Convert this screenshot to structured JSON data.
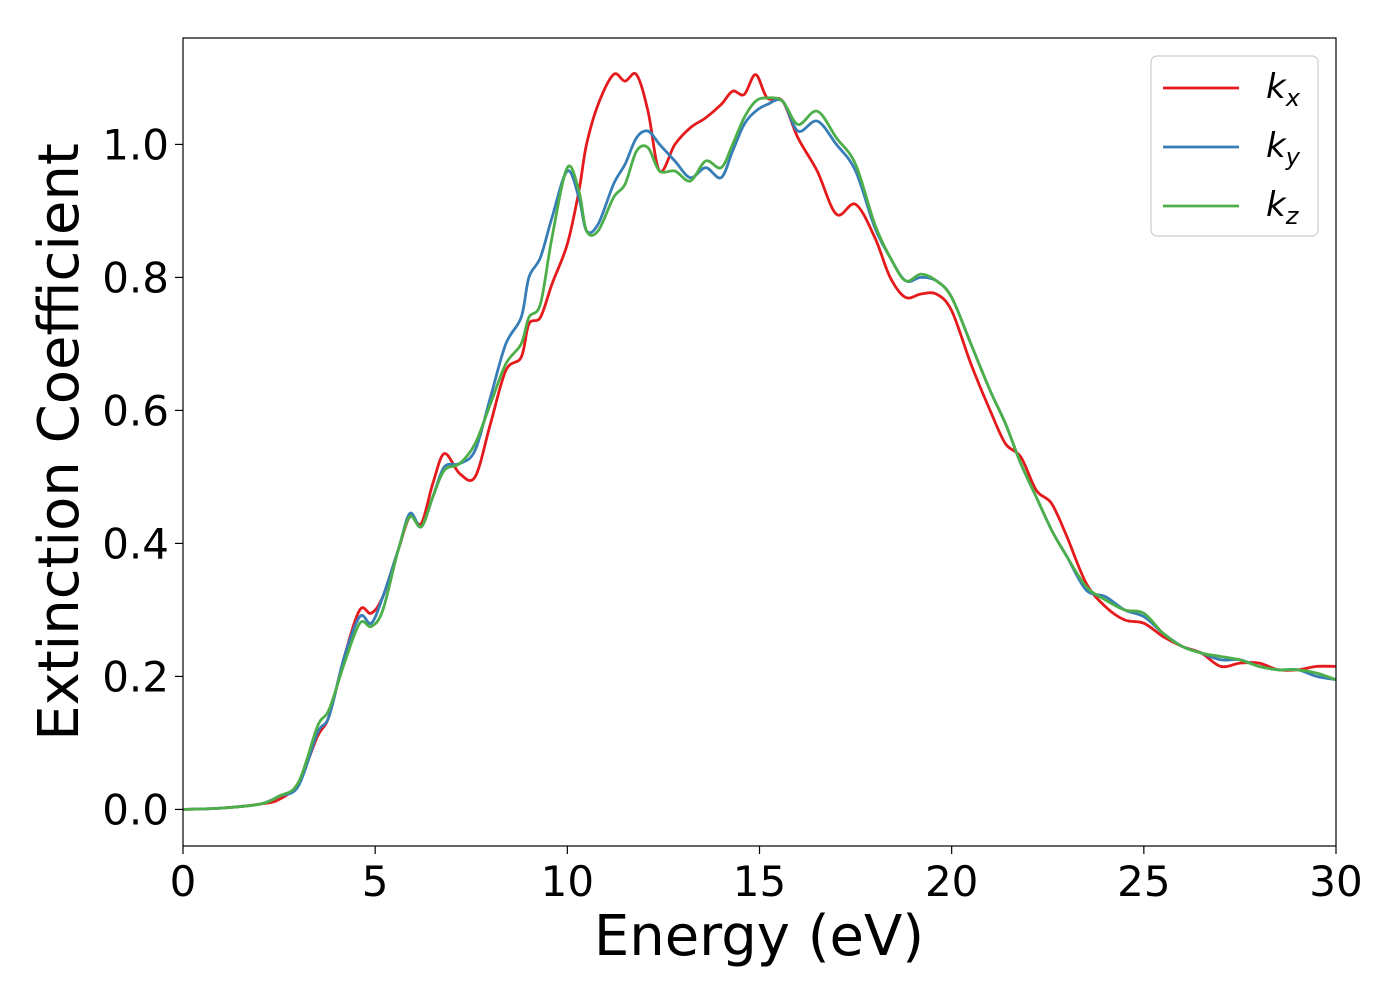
{
  "chart_data": {
    "type": "line",
    "xlabel": "Energy (eV)",
    "ylabel": "Extinction Coefficient",
    "xlim": [
      0,
      30
    ],
    "ylim": [
      -0.055,
      1.16
    ],
    "x_ticks": [
      0,
      5,
      10,
      15,
      20,
      25,
      30
    ],
    "x_tick_labels": [
      "0",
      "5",
      "10",
      "15",
      "20",
      "25",
      "30"
    ],
    "y_ticks": [
      0.0,
      0.2,
      0.4,
      0.6,
      0.8,
      1.0
    ],
    "y_tick_labels": [
      "0.0",
      "0.2",
      "0.4",
      "0.6",
      "0.8",
      "1.0"
    ],
    "grid": false,
    "legend_position": "top-right",
    "series": [
      {
        "name": "k_x",
        "label_main": "k",
        "label_sub": "x",
        "color": "#e41a1c",
        "points": [
          [
            0,
            0
          ],
          [
            1,
            0.002
          ],
          [
            2,
            0.008
          ],
          [
            2.5,
            0.015
          ],
          [
            3,
            0.04
          ],
          [
            3.5,
            0.11
          ],
          [
            3.8,
            0.14
          ],
          [
            4.2,
            0.23
          ],
          [
            4.6,
            0.3
          ],
          [
            4.9,
            0.295
          ],
          [
            5.2,
            0.32
          ],
          [
            5.6,
            0.39
          ],
          [
            5.9,
            0.44
          ],
          [
            6.2,
            0.43
          ],
          [
            6.5,
            0.49
          ],
          [
            6.8,
            0.535
          ],
          [
            7.2,
            0.505
          ],
          [
            7.6,
            0.5
          ],
          [
            8.0,
            0.58
          ],
          [
            8.4,
            0.66
          ],
          [
            8.8,
            0.68
          ],
          [
            9.0,
            0.73
          ],
          [
            9.3,
            0.74
          ],
          [
            9.6,
            0.79
          ],
          [
            10.0,
            0.85
          ],
          [
            10.3,
            0.93
          ],
          [
            10.5,
            1.0
          ],
          [
            10.8,
            1.06
          ],
          [
            11.2,
            1.105
          ],
          [
            11.5,
            1.095
          ],
          [
            11.8,
            1.105
          ],
          [
            12.1,
            1.05
          ],
          [
            12.4,
            0.96
          ],
          [
            12.8,
            1.0
          ],
          [
            13.2,
            1.025
          ],
          [
            13.6,
            1.04
          ],
          [
            14.0,
            1.06
          ],
          [
            14.3,
            1.08
          ],
          [
            14.6,
            1.075
          ],
          [
            14.9,
            1.105
          ],
          [
            15.2,
            1.07
          ],
          [
            15.6,
            1.065
          ],
          [
            16.0,
            1.01
          ],
          [
            16.5,
            0.96
          ],
          [
            17.0,
            0.895
          ],
          [
            17.5,
            0.91
          ],
          [
            18.0,
            0.86
          ],
          [
            18.4,
            0.8
          ],
          [
            18.8,
            0.77
          ],
          [
            19.2,
            0.775
          ],
          [
            19.6,
            0.775
          ],
          [
            20.0,
            0.75
          ],
          [
            20.5,
            0.67
          ],
          [
            21.0,
            0.6
          ],
          [
            21.4,
            0.55
          ],
          [
            21.8,
            0.53
          ],
          [
            22.2,
            0.48
          ],
          [
            22.6,
            0.46
          ],
          [
            23.0,
            0.41
          ],
          [
            23.5,
            0.34
          ],
          [
            24.0,
            0.305
          ],
          [
            24.5,
            0.285
          ],
          [
            25.0,
            0.28
          ],
          [
            25.5,
            0.26
          ],
          [
            26.0,
            0.245
          ],
          [
            26.5,
            0.235
          ],
          [
            27.0,
            0.215
          ],
          [
            27.5,
            0.22
          ],
          [
            28.0,
            0.22
          ],
          [
            28.5,
            0.21
          ],
          [
            29.0,
            0.21
          ],
          [
            29.5,
            0.215
          ],
          [
            30.0,
            0.215
          ]
        ]
      },
      {
        "name": "k_y",
        "label_main": "k",
        "label_sub": "y",
        "color": "#377eb8",
        "points": [
          [
            0,
            0
          ],
          [
            1,
            0.002
          ],
          [
            2,
            0.008
          ],
          [
            2.5,
            0.02
          ],
          [
            3,
            0.035
          ],
          [
            3.5,
            0.115
          ],
          [
            3.8,
            0.14
          ],
          [
            4.2,
            0.23
          ],
          [
            4.6,
            0.29
          ],
          [
            4.9,
            0.28
          ],
          [
            5.2,
            0.32
          ],
          [
            5.6,
            0.39
          ],
          [
            5.9,
            0.445
          ],
          [
            6.2,
            0.425
          ],
          [
            6.5,
            0.47
          ],
          [
            6.8,
            0.515
          ],
          [
            7.2,
            0.52
          ],
          [
            7.6,
            0.54
          ],
          [
            8.0,
            0.62
          ],
          [
            8.4,
            0.7
          ],
          [
            8.8,
            0.74
          ],
          [
            9.0,
            0.8
          ],
          [
            9.3,
            0.83
          ],
          [
            9.6,
            0.89
          ],
          [
            10.0,
            0.96
          ],
          [
            10.3,
            0.92
          ],
          [
            10.5,
            0.87
          ],
          [
            10.8,
            0.88
          ],
          [
            11.2,
            0.94
          ],
          [
            11.5,
            0.97
          ],
          [
            11.8,
            1.01
          ],
          [
            12.1,
            1.02
          ],
          [
            12.4,
            1.0
          ],
          [
            12.8,
            0.975
          ],
          [
            13.2,
            0.95
          ],
          [
            13.6,
            0.965
          ],
          [
            14.0,
            0.95
          ],
          [
            14.3,
            0.99
          ],
          [
            14.6,
            1.03
          ],
          [
            14.9,
            1.05
          ],
          [
            15.2,
            1.06
          ],
          [
            15.6,
            1.065
          ],
          [
            16.0,
            1.02
          ],
          [
            16.5,
            1.035
          ],
          [
            17.0,
            1.0
          ],
          [
            17.5,
            0.96
          ],
          [
            18.0,
            0.875
          ],
          [
            18.4,
            0.83
          ],
          [
            18.8,
            0.795
          ],
          [
            19.2,
            0.8
          ],
          [
            19.6,
            0.795
          ],
          [
            20.0,
            0.77
          ],
          [
            20.5,
            0.7
          ],
          [
            21.0,
            0.63
          ],
          [
            21.4,
            0.58
          ],
          [
            21.8,
            0.52
          ],
          [
            22.2,
            0.47
          ],
          [
            22.6,
            0.42
          ],
          [
            23.0,
            0.38
          ],
          [
            23.5,
            0.33
          ],
          [
            24.0,
            0.32
          ],
          [
            24.5,
            0.3
          ],
          [
            25.0,
            0.29
          ],
          [
            25.5,
            0.265
          ],
          [
            26.0,
            0.245
          ],
          [
            26.5,
            0.235
          ],
          [
            27.0,
            0.225
          ],
          [
            27.5,
            0.225
          ],
          [
            28.0,
            0.215
          ],
          [
            28.5,
            0.21
          ],
          [
            29.0,
            0.21
          ],
          [
            29.5,
            0.2
          ],
          [
            30.0,
            0.195
          ]
        ]
      },
      {
        "name": "k_z",
        "label_main": "k",
        "label_sub": "z",
        "color": "#4daf4a",
        "points": [
          [
            0,
            0
          ],
          [
            1,
            0.002
          ],
          [
            2,
            0.008
          ],
          [
            2.5,
            0.02
          ],
          [
            3,
            0.04
          ],
          [
            3.5,
            0.125
          ],
          [
            3.8,
            0.15
          ],
          [
            4.2,
            0.22
          ],
          [
            4.6,
            0.28
          ],
          [
            4.9,
            0.275
          ],
          [
            5.2,
            0.3
          ],
          [
            5.6,
            0.39
          ],
          [
            5.9,
            0.44
          ],
          [
            6.2,
            0.425
          ],
          [
            6.5,
            0.47
          ],
          [
            6.8,
            0.51
          ],
          [
            7.2,
            0.52
          ],
          [
            7.6,
            0.55
          ],
          [
            8.0,
            0.61
          ],
          [
            8.4,
            0.67
          ],
          [
            8.8,
            0.7
          ],
          [
            9.0,
            0.74
          ],
          [
            9.3,
            0.76
          ],
          [
            9.6,
            0.86
          ],
          [
            10.0,
            0.965
          ],
          [
            10.3,
            0.93
          ],
          [
            10.5,
            0.87
          ],
          [
            10.8,
            0.87
          ],
          [
            11.2,
            0.92
          ],
          [
            11.5,
            0.94
          ],
          [
            11.8,
            0.99
          ],
          [
            12.1,
            0.995
          ],
          [
            12.4,
            0.96
          ],
          [
            12.8,
            0.96
          ],
          [
            13.2,
            0.945
          ],
          [
            13.6,
            0.975
          ],
          [
            14.0,
            0.965
          ],
          [
            14.3,
            1.0
          ],
          [
            14.6,
            1.04
          ],
          [
            14.9,
            1.065
          ],
          [
            15.2,
            1.07
          ],
          [
            15.6,
            1.065
          ],
          [
            16.0,
            1.03
          ],
          [
            16.5,
            1.05
          ],
          [
            17.0,
            1.01
          ],
          [
            17.5,
            0.97
          ],
          [
            18.0,
            0.88
          ],
          [
            18.4,
            0.83
          ],
          [
            18.8,
            0.795
          ],
          [
            19.2,
            0.805
          ],
          [
            19.6,
            0.795
          ],
          [
            20.0,
            0.77
          ],
          [
            20.5,
            0.7
          ],
          [
            21.0,
            0.63
          ],
          [
            21.4,
            0.58
          ],
          [
            21.8,
            0.52
          ],
          [
            22.2,
            0.47
          ],
          [
            22.6,
            0.42
          ],
          [
            23.0,
            0.38
          ],
          [
            23.5,
            0.335
          ],
          [
            24.0,
            0.315
          ],
          [
            24.5,
            0.3
          ],
          [
            25.0,
            0.295
          ],
          [
            25.5,
            0.265
          ],
          [
            26.0,
            0.245
          ],
          [
            26.5,
            0.235
          ],
          [
            27.0,
            0.23
          ],
          [
            27.5,
            0.225
          ],
          [
            28.0,
            0.215
          ],
          [
            28.5,
            0.21
          ],
          [
            29.0,
            0.21
          ],
          [
            29.5,
            0.205
          ],
          [
            30.0,
            0.195
          ]
        ]
      }
    ]
  }
}
